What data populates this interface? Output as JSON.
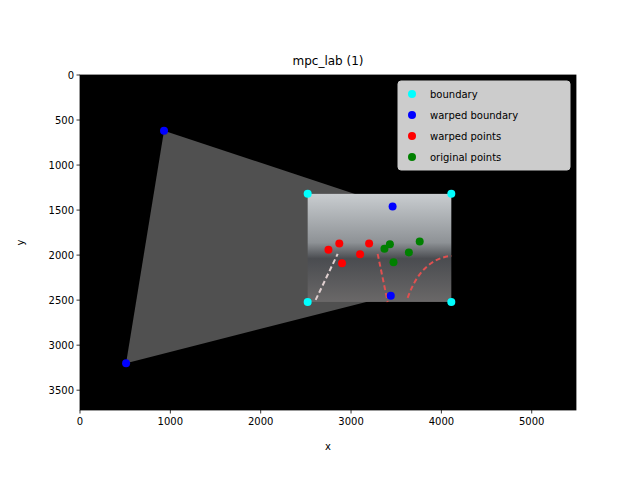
{
  "chart_data": {
    "type": "scatter",
    "title": "mpc_lab (1)",
    "x_label": "x",
    "y_label": "y",
    "xlim": [
      0,
      5490
    ],
    "ylim": [
      3720,
      0
    ],
    "xticks": [
      0,
      1000,
      2000,
      3000,
      4000,
      5000
    ],
    "yticks": [
      0,
      500,
      1000,
      1500,
      2000,
      2500,
      3000,
      3500
    ],
    "legend": "upper right",
    "series": [
      {
        "name": "boundary",
        "color": "#00ffff",
        "marker": "circle",
        "x": [
          2520,
          4110,
          4110,
          2520
        ],
        "values": [
          1320,
          1320,
          2520,
          2520
        ]
      },
      {
        "name": "warped boundary",
        "color": "#0000ff",
        "marker": "circle",
        "x": [
          930,
          3460,
          3440,
          510
        ],
        "values": [
          620,
          1460,
          2450,
          3200
        ]
      },
      {
        "name": "warped points",
        "color": "#ff0000",
        "marker": "circle",
        "x": [
          2750,
          2870,
          2900,
          3100,
          3200
        ],
        "values": [
          1940,
          1870,
          2090,
          1990,
          1870
        ]
      },
      {
        "name": "original points",
        "color": "#008000",
        "marker": "circle",
        "x": [
          3370,
          3430,
          3470,
          3640,
          3760
        ],
        "values": [
          1930,
          1880,
          2080,
          1970,
          1850
        ]
      }
    ]
  }
}
